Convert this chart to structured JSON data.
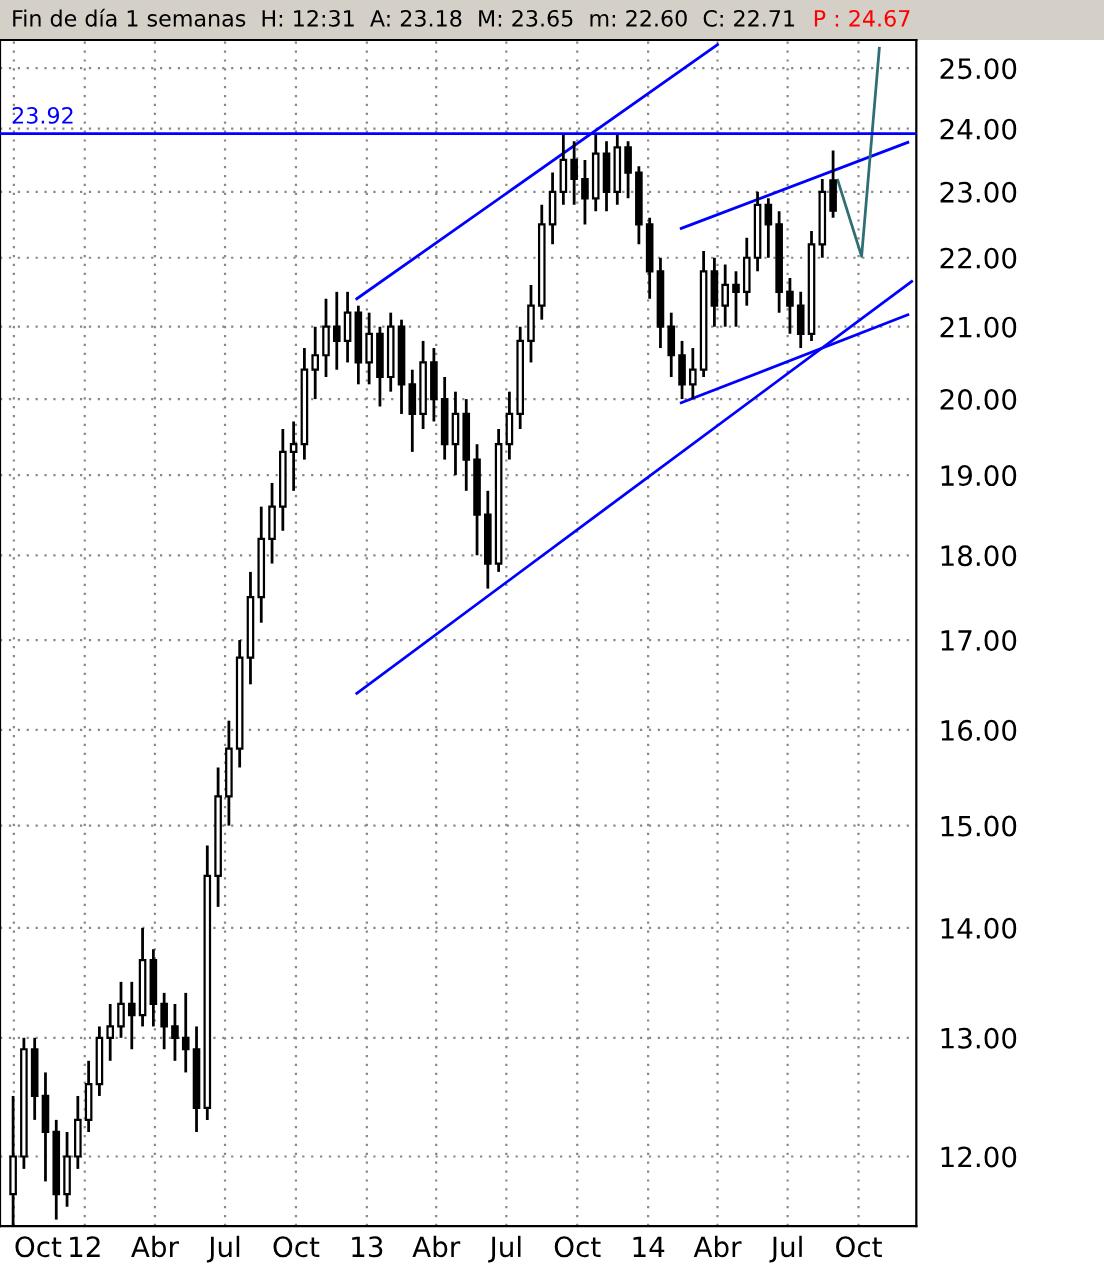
{
  "chart_data": {
    "type": "candlestick",
    "title": "Fin de día 1 semanas  H: 12:31  A: 23.18  M: 23.65  m: 22.60  C: 22.71",
    "annotations": [
      "P : 24.67"
    ],
    "x": [
      "2011-09-30",
      "2011-10-14",
      "2011-10-28",
      "2011-11-11",
      "2011-11-25",
      "2011-12-09",
      "2011-12-23",
      "2012-01-06",
      "2012-01-20",
      "2012-02-03",
      "2012-02-17",
      "2012-03-02",
      "2012-03-16",
      "2012-03-30",
      "2012-04-13",
      "2012-04-27",
      "2012-05-11",
      "2012-05-25",
      "2012-06-08",
      "2012-06-22",
      "2012-07-06",
      "2012-07-20",
      "2012-08-03",
      "2012-08-17",
      "2012-08-31",
      "2012-09-14",
      "2012-09-28",
      "2012-10-12",
      "2012-10-26",
      "2012-11-09",
      "2012-11-23",
      "2012-12-07",
      "2012-12-21",
      "2013-01-04",
      "2013-01-18",
      "2013-02-01",
      "2013-02-15",
      "2013-03-01",
      "2013-03-15",
      "2013-03-29",
      "2013-04-12",
      "2013-04-26",
      "2013-05-10",
      "2013-05-24",
      "2013-06-07",
      "2013-06-21",
      "2013-07-05",
      "2013-07-19",
      "2013-08-02",
      "2013-08-16",
      "2013-08-30",
      "2013-09-13",
      "2013-09-27",
      "2013-10-11",
      "2013-10-25",
      "2013-11-08",
      "2013-11-22",
      "2013-12-06",
      "2013-12-20",
      "2014-01-03",
      "2014-01-17",
      "2014-01-31",
      "2014-02-14",
      "2014-02-28",
      "2014-03-14",
      "2014-03-28",
      "2014-04-11",
      "2014-04-25",
      "2014-05-09",
      "2014-05-23",
      "2014-06-06",
      "2014-06-20",
      "2014-07-04",
      "2014-07-18",
      "2014-08-01",
      "2014-08-15",
      "2014-08-29"
    ],
    "ohlc": [
      [
        11.7,
        12.5,
        11.4,
        12.0
      ],
      [
        12.0,
        13.0,
        11.9,
        12.9
      ],
      [
        12.9,
        13.0,
        12.3,
        12.5
      ],
      [
        12.5,
        12.7,
        11.8,
        12.2
      ],
      [
        12.2,
        12.3,
        11.5,
        11.7
      ],
      [
        11.7,
        12.2,
        11.6,
        12.0
      ],
      [
        12.0,
        12.5,
        11.9,
        12.3
      ],
      [
        12.3,
        12.8,
        12.2,
        12.6
      ],
      [
        12.6,
        13.1,
        12.5,
        13.0
      ],
      [
        13.0,
        13.3,
        12.8,
        13.1
      ],
      [
        13.1,
        13.5,
        13.0,
        13.3
      ],
      [
        13.3,
        13.5,
        12.9,
        13.2
      ],
      [
        13.2,
        14.0,
        13.1,
        13.7
      ],
      [
        13.7,
        13.8,
        13.1,
        13.3
      ],
      [
        13.3,
        13.4,
        12.9,
        13.1
      ],
      [
        13.1,
        13.3,
        12.8,
        13.0
      ],
      [
        13.0,
        13.4,
        12.7,
        12.9
      ],
      [
        12.9,
        13.1,
        12.2,
        12.4
      ],
      [
        12.4,
        14.8,
        12.3,
        14.5
      ],
      [
        14.5,
        15.6,
        14.2,
        15.3
      ],
      [
        15.3,
        16.1,
        15.0,
        15.8
      ],
      [
        15.8,
        17.0,
        15.6,
        16.8
      ],
      [
        16.8,
        17.8,
        16.5,
        17.5
      ],
      [
        17.5,
        18.6,
        17.2,
        18.2
      ],
      [
        18.2,
        18.9,
        17.9,
        18.6
      ],
      [
        18.6,
        19.6,
        18.3,
        19.3
      ],
      [
        19.3,
        19.7,
        18.8,
        19.4
      ],
      [
        19.4,
        20.7,
        19.2,
        20.4
      ],
      [
        20.4,
        21.0,
        20.0,
        20.6
      ],
      [
        20.6,
        21.4,
        20.3,
        21.0
      ],
      [
        21.0,
        21.5,
        20.4,
        20.8
      ],
      [
        20.8,
        21.5,
        20.5,
        21.2
      ],
      [
        21.2,
        21.3,
        20.2,
        20.5
      ],
      [
        20.5,
        21.2,
        20.2,
        20.9
      ],
      [
        20.9,
        21.0,
        19.9,
        20.3
      ],
      [
        20.3,
        21.2,
        20.1,
        21.0
      ],
      [
        21.0,
        21.1,
        19.8,
        20.2
      ],
      [
        20.2,
        20.4,
        19.3,
        19.8
      ],
      [
        19.8,
        20.8,
        19.6,
        20.5
      ],
      [
        20.5,
        20.7,
        19.7,
        20.0
      ],
      [
        20.0,
        20.3,
        19.2,
        19.4
      ],
      [
        19.4,
        20.1,
        19.0,
        19.8
      ],
      [
        19.8,
        20.0,
        18.8,
        19.2
      ],
      [
        19.2,
        19.4,
        18.0,
        18.5
      ],
      [
        18.5,
        18.8,
        17.6,
        17.9
      ],
      [
        17.9,
        19.6,
        17.8,
        19.4
      ],
      [
        19.4,
        20.1,
        19.2,
        19.8
      ],
      [
        19.8,
        21.0,
        19.6,
        20.8
      ],
      [
        20.8,
        21.6,
        20.5,
        21.3
      ],
      [
        21.3,
        22.8,
        21.1,
        22.5
      ],
      [
        22.5,
        23.3,
        22.2,
        23.0
      ],
      [
        23.0,
        23.9,
        22.8,
        23.5
      ],
      [
        23.5,
        23.8,
        22.8,
        23.2
      ],
      [
        23.2,
        23.5,
        22.5,
        22.9
      ],
      [
        22.9,
        23.9,
        22.7,
        23.6
      ],
      [
        23.6,
        23.8,
        22.7,
        23.0
      ],
      [
        23.0,
        23.9,
        22.8,
        23.7
      ],
      [
        23.7,
        23.8,
        22.9,
        23.3
      ],
      [
        23.3,
        23.4,
        22.2,
        22.5
      ],
      [
        22.5,
        22.6,
        21.4,
        21.8
      ],
      [
        21.8,
        22.0,
        20.7,
        21.0
      ],
      [
        21.0,
        21.2,
        20.3,
        20.6
      ],
      [
        20.6,
        20.8,
        20.0,
        20.2
      ],
      [
        20.2,
        20.7,
        20.0,
        20.4
      ],
      [
        20.4,
        22.1,
        20.3,
        21.8
      ],
      [
        21.8,
        22.0,
        21.0,
        21.3
      ],
      [
        21.3,
        21.9,
        21.0,
        21.6
      ],
      [
        21.6,
        21.8,
        21.0,
        21.5
      ],
      [
        21.5,
        22.3,
        21.3,
        22.0
      ],
      [
        22.0,
        23.0,
        21.8,
        22.8
      ],
      [
        22.8,
        22.9,
        22.0,
        22.5
      ],
      [
        22.5,
        22.7,
        21.2,
        21.5
      ],
      [
        21.5,
        21.7,
        20.9,
        21.3
      ],
      [
        21.3,
        21.5,
        20.7,
        20.9
      ],
      [
        20.9,
        22.4,
        20.8,
        22.2
      ],
      [
        22.2,
        23.2,
        22.0,
        23.0
      ],
      [
        23.18,
        23.65,
        22.6,
        22.71
      ]
    ],
    "series": [
      {
        "type": "line",
        "color": "#0000ff",
        "x": [
          "2012-12-19",
          "2014-04-01"
        ],
        "values": [
          21.4,
          25.4
        ]
      },
      {
        "type": "line",
        "color": "#0000ff",
        "x": [
          "2012-12-19",
          "2014-12-09"
        ],
        "values": [
          16.4,
          21.65
        ]
      },
      {
        "type": "line",
        "color": "#0000ff",
        "x": [
          "2014-02-13",
          "2014-12-04"
        ],
        "values": [
          22.44,
          23.78
        ]
      },
      {
        "type": "line",
        "color": "#0000ff",
        "x": [
          "2014-02-13",
          "2014-12-04"
        ],
        "values": [
          19.95,
          21.17
        ]
      },
      {
        "type": "line",
        "color": "#2f6f74",
        "x": [
          "2014-09-04",
          "2014-10-05",
          "2014-10-28"
        ],
        "values": [
          23.18,
          22.02,
          25.34
        ]
      }
    ],
    "ref_lines": [
      {
        "axis": "y",
        "value": 23.92,
        "label": "23.92",
        "color": "#0000ff"
      }
    ],
    "log": "y",
    "grid": true,
    "xlim": [
      "2011-09-13",
      "2014-12-15"
    ],
    "xticks": [
      {
        "value": "2011-10-01",
        "label": "Oct"
      },
      {
        "value": "2012-01-01",
        "label": "12"
      },
      {
        "value": "2012-04-01",
        "label": "Abr"
      },
      {
        "value": "2012-07-01",
        "label": "Jul"
      },
      {
        "value": "2012-10-01",
        "label": "Oct"
      },
      {
        "value": "2013-01-01",
        "label": "13"
      },
      {
        "value": "2013-04-01",
        "label": "Abr"
      },
      {
        "value": "2013-07-01",
        "label": "Jul"
      },
      {
        "value": "2013-10-01",
        "label": "Oct"
      },
      {
        "value": "2014-01-01",
        "label": "14"
      },
      {
        "value": "2014-04-01",
        "label": "Abr"
      },
      {
        "value": "2014-07-01",
        "label": "Jul"
      },
      {
        "value": "2014-10-01",
        "label": "Oct"
      }
    ],
    "ylim": [
      11.45,
      25.48
    ],
    "yticks": [
      {
        "value": 12,
        "label": "12.00"
      },
      {
        "value": 13,
        "label": "13.00"
      },
      {
        "value": 14,
        "label": "14.00"
      },
      {
        "value": 15,
        "label": "15.00"
      },
      {
        "value": 16,
        "label": "16.00"
      },
      {
        "value": 17,
        "label": "17.00"
      },
      {
        "value": 18,
        "label": "18.00"
      },
      {
        "value": 19,
        "label": "19.00"
      },
      {
        "value": 20,
        "label": "20.00"
      },
      {
        "value": 21,
        "label": "21.00"
      },
      {
        "value": 22,
        "label": "22.00"
      },
      {
        "value": 23,
        "label": "23.00"
      },
      {
        "value": 24,
        "label": "24.00"
      },
      {
        "value": 25,
        "label": "25.00"
      }
    ]
  }
}
